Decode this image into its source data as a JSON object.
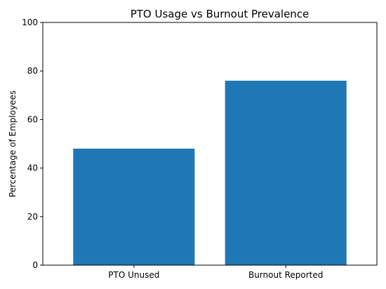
{
  "chart_data": {
    "type": "bar",
    "title": "PTO Usage vs Burnout Prevalence",
    "xlabel": "",
    "ylabel": "Percentage of Employees",
    "categories": [
      "PTO Unused",
      "Burnout Reported"
    ],
    "values": [
      48,
      76
    ],
    "ylim": [
      0,
      100
    ],
    "yticks": [
      0,
      20,
      40,
      60,
      80,
      100
    ],
    "grid": false,
    "bar_color": "#1f77b4"
  }
}
